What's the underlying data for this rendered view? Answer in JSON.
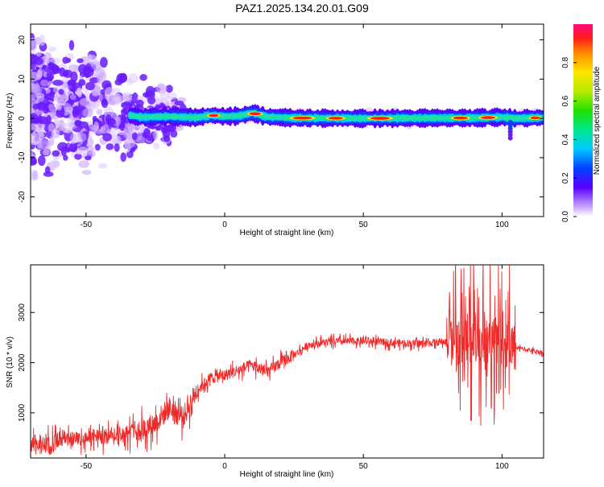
{
  "title": "PAZ1.2025.134.20.01.G09",
  "chart_data": [
    {
      "type": "heatmap",
      "xlabel": "Height of straight line (km)",
      "ylabel": "Frequency (Hz)",
      "xlim": [
        -70,
        115
      ],
      "ylim": [
        -25,
        24
      ],
      "xticks": [
        "-50",
        "0",
        "50",
        "100"
      ],
      "xtick_values": [
        -50,
        0,
        50,
        100
      ],
      "yticks": [
        "-20",
        "-10",
        "0",
        "10",
        "20"
      ],
      "ytick_values": [
        -20,
        -10,
        0,
        10,
        20
      ],
      "colorbar": {
        "label": "Normalized spectral amplitude",
        "range": [
          0,
          1
        ],
        "ticks": [
          "0.0",
          "0.2",
          "0.4",
          "0.6",
          "0.8"
        ],
        "tick_values": [
          0.0,
          0.2,
          0.4,
          0.6,
          0.8
        ]
      },
      "ridge": [
        {
          "x": -70,
          "f": 3
        },
        {
          "x": -60,
          "f": 2.5
        },
        {
          "x": -50,
          "f": 2
        },
        {
          "x": -40,
          "f": 1.5
        },
        {
          "x": -30,
          "f": 0.3
        },
        {
          "x": -20,
          "f": 0.5
        },
        {
          "x": -10,
          "f": 0.2
        },
        {
          "x": -5,
          "f": 0.8
        },
        {
          "x": 0,
          "f": 0.5
        },
        {
          "x": 5,
          "f": 0.6
        },
        {
          "x": 10,
          "f": 1.4
        },
        {
          "x": 15,
          "f": 0.4
        },
        {
          "x": 25,
          "f": 0.1
        },
        {
          "x": 50,
          "f": 0
        },
        {
          "x": 75,
          "f": 0.1
        },
        {
          "x": 90,
          "f": 0.1
        },
        {
          "x": 100,
          "f": 0.3
        },
        {
          "x": 105,
          "f": 0
        },
        {
          "x": 115,
          "f": 0.2
        }
      ]
    },
    {
      "type": "line",
      "xlabel": "Height of straight line (km)",
      "ylabel": "SNR (10 * v/v)",
      "xlim": [
        -70,
        115
      ],
      "ylim": [
        100,
        3950
      ],
      "xticks": [
        "-50",
        "0",
        "50",
        "100"
      ],
      "xtick_values": [
        -50,
        0,
        50,
        100
      ],
      "yticks": [
        "1000",
        "2000",
        "3000"
      ],
      "ytick_values": [
        1000,
        2000,
        3000
      ],
      "series": [
        {
          "color": "#ee2a2a",
          "x": [
            -70,
            -60,
            -50,
            -40,
            -30,
            -25,
            -20,
            -15,
            -10,
            -5,
            0,
            5,
            10,
            15,
            20,
            25,
            30,
            35,
            40,
            50,
            60,
            70,
            80,
            85,
            90,
            95,
            100,
            105,
            110,
            115
          ],
          "y": [
            350,
            420,
            500,
            560,
            650,
            800,
            1100,
            900,
            1450,
            1700,
            1750,
            1850,
            1950,
            1800,
            2000,
            2150,
            2350,
            2400,
            2420,
            2430,
            2400,
            2380,
            2420,
            2450,
            2500,
            2550,
            2450,
            2300,
            2250,
            2200
          ]
        }
      ]
    }
  ]
}
